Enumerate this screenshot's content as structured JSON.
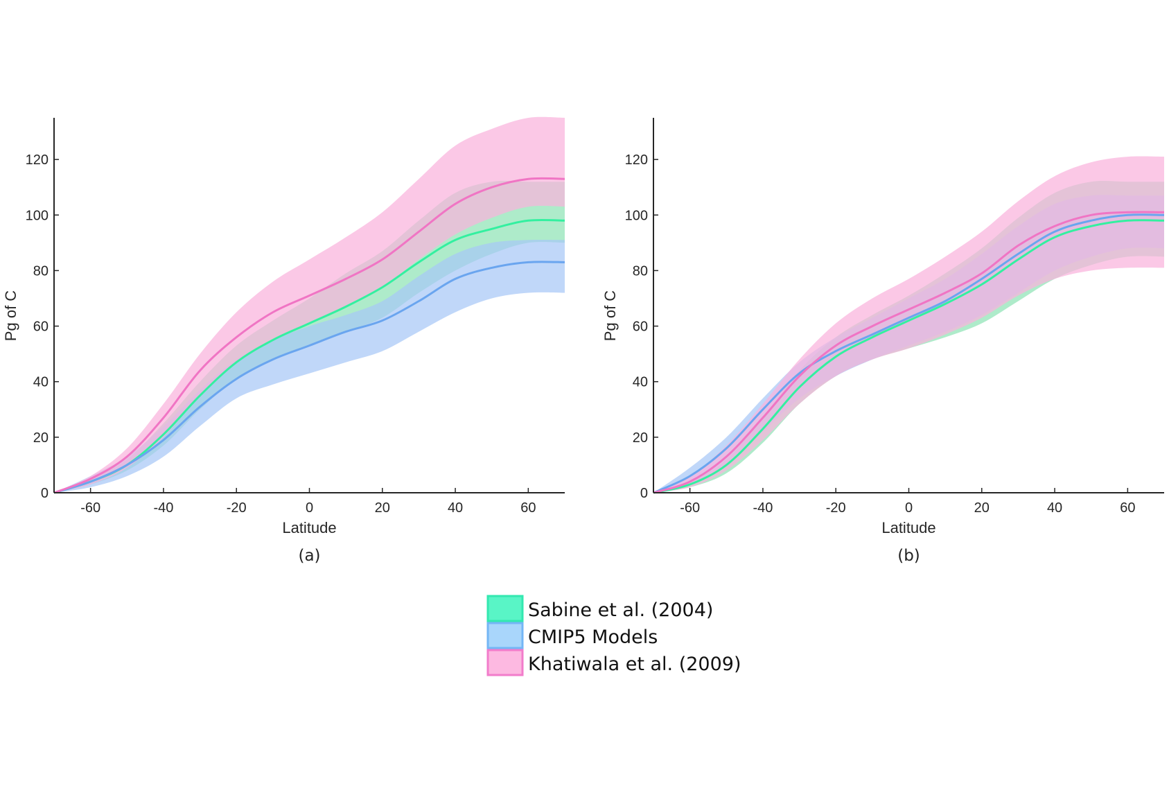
{
  "legend": [
    {
      "label": "Sabine et al. (2004)",
      "fill": "#59f5c6",
      "stroke": "#33e8b0"
    },
    {
      "label": "CMIP5 Models",
      "fill": "#a9d6fb",
      "stroke": "#74b6f5"
    },
    {
      "label": "Khatiwala et al. (2009)",
      "fill": "#fdb9e1",
      "stroke": "#f27ccb"
    }
  ],
  "chart_data": [
    {
      "type": "area",
      "panel_label": "(a)",
      "xlabel": "Latitude",
      "ylabel": "Pg of C",
      "xlim": [
        -70,
        70
      ],
      "ylim": [
        0,
        135
      ],
      "xticks": [
        -60,
        -40,
        -20,
        0,
        20,
        40,
        60
      ],
      "yticks": [
        0,
        20,
        40,
        60,
        80,
        100,
        120
      ],
      "x": [
        -70,
        -60,
        -50,
        -40,
        -30,
        -20,
        -10,
        0,
        10,
        20,
        30,
        40,
        50,
        60,
        70
      ],
      "series": [
        {
          "name": "Sabine et al. (2004)",
          "color": "#33f0a0",
          "fill": "#8fe3b6",
          "mean": [
            0,
            4,
            10,
            21,
            35,
            47,
            55,
            61,
            67,
            74,
            83,
            91,
            95,
            98,
            98
          ],
          "lower": [
            0,
            3,
            8,
            17,
            30,
            41,
            48,
            53,
            58,
            63,
            72,
            80,
            86,
            90,
            90
          ],
          "upper": [
            0,
            5,
            12,
            25,
            40,
            53,
            62,
            70,
            79,
            87,
            98,
            108,
            112,
            112,
            112
          ]
        },
        {
          "name": "CMIP5 Models",
          "color": "#6aa5ef",
          "fill": "#a7c7f7",
          "mean": [
            0,
            4,
            10,
            19,
            31,
            41,
            48,
            53,
            58,
            62,
            69,
            77,
            81,
            83,
            83
          ],
          "lower": [
            0,
            2,
            6,
            13,
            24,
            34,
            39,
            43,
            47,
            51,
            58,
            65,
            70,
            72,
            72
          ],
          "upper": [
            0,
            6,
            13,
            24,
            37,
            48,
            55,
            60,
            64,
            69,
            78,
            86,
            90,
            91,
            91
          ]
        },
        {
          "name": "Khatiwala et al. (2009)",
          "color": "#f075c4",
          "fill": "#f9b3dc",
          "mean": [
            0,
            5,
            13,
            27,
            44,
            56,
            65,
            71,
            77,
            84,
            94,
            104,
            110,
            113,
            113
          ],
          "lower": [
            0,
            3,
            9,
            20,
            35,
            47,
            55,
            61,
            67,
            74,
            84,
            93,
            99,
            103,
            103
          ],
          "upper": [
            0,
            6,
            16,
            32,
            50,
            65,
            76,
            84,
            92,
            101,
            113,
            125,
            131,
            135,
            135
          ]
        }
      ]
    },
    {
      "type": "area",
      "panel_label": "(b)",
      "xlabel": "Latitude",
      "ylabel": "Pg of C",
      "xlim": [
        -70,
        70
      ],
      "ylim": [
        0,
        135
      ],
      "xticks": [
        -60,
        -40,
        -20,
        0,
        20,
        40,
        60
      ],
      "yticks": [
        0,
        20,
        40,
        60,
        80,
        100,
        120
      ],
      "x": [
        -70,
        -60,
        -50,
        -40,
        -30,
        -20,
        -10,
        0,
        10,
        20,
        30,
        40,
        50,
        60,
        70
      ],
      "series": [
        {
          "name": "Sabine et al. (2004)",
          "color": "#33f0a0",
          "fill": "#8fe3b6",
          "mean": [
            0,
            3,
            10,
            23,
            38,
            49,
            56,
            62,
            68,
            75,
            84,
            92,
            96,
            98,
            98
          ],
          "lower": [
            0,
            2,
            7,
            18,
            32,
            42,
            48,
            52,
            56,
            61,
            69,
            77,
            82,
            85,
            85
          ],
          "upper": [
            0,
            4,
            12,
            27,
            44,
            56,
            64,
            71,
            79,
            88,
            99,
            108,
            112,
            112,
            112
          ]
        },
        {
          "name": "CMIP5 Models",
          "color": "#6aa5ef",
          "fill": "#a7c7f7",
          "mean": [
            0,
            6,
            16,
            30,
            43,
            51,
            57,
            63,
            69,
            77,
            86,
            94,
            98,
            100,
            100
          ],
          "lower": [
            0,
            3,
            10,
            22,
            34,
            42,
            48,
            53,
            58,
            64,
            72,
            80,
            85,
            88,
            88
          ],
          "upper": [
            0,
            9,
            20,
            34,
            47,
            56,
            63,
            70,
            77,
            86,
            96,
            104,
            107,
            107,
            107
          ]
        },
        {
          "name": "Khatiwala et al. (2009)",
          "color": "#f075c4",
          "fill": "#f9b3dc",
          "mean": [
            0,
            4,
            13,
            27,
            42,
            53,
            60,
            66,
            72,
            79,
            89,
            96,
            100,
            101,
            101
          ],
          "lower": [
            0,
            2,
            8,
            19,
            32,
            42,
            48,
            52,
            57,
            63,
            71,
            77,
            80,
            81,
            81
          ],
          "upper": [
            0,
            6,
            17,
            32,
            48,
            61,
            70,
            77,
            85,
            94,
            105,
            114,
            119,
            121,
            121
          ]
        }
      ]
    }
  ]
}
